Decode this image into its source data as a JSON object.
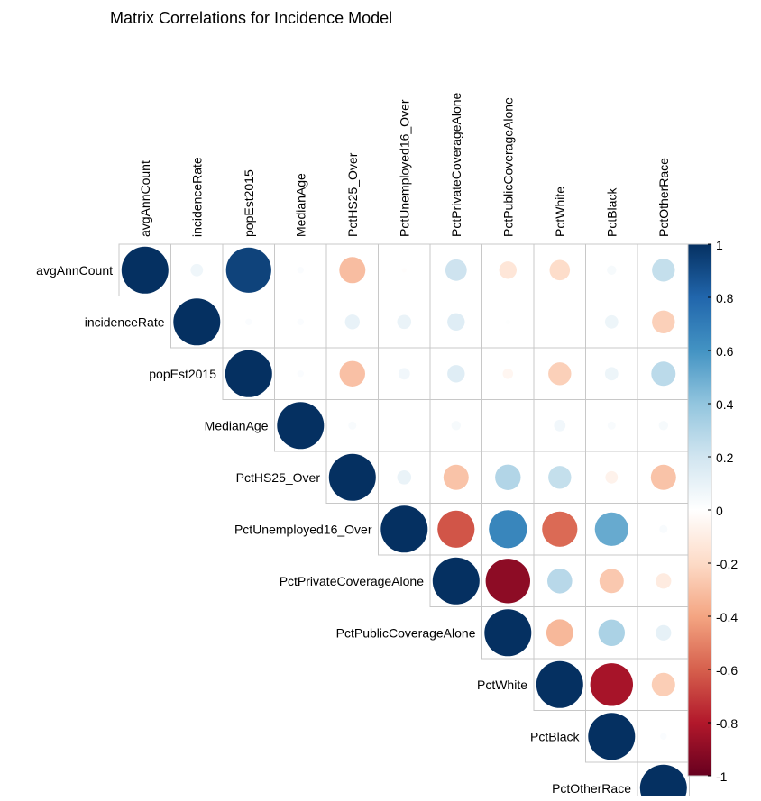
{
  "chart_data": {
    "type": "heatmap",
    "title": "Matrix Correlations for Incidence Model",
    "variables": [
      "avgAnnCount",
      "incidenceRate",
      "popEst2015",
      "MedianAge",
      "PctHS25_Over",
      "PctUnemployed16_Over",
      "PctPrivateCoverageAlone",
      "PctPublicCoverageAlone",
      "PctWhite",
      "PctBlack",
      "PctOtherRace"
    ],
    "matrix": [
      [
        1.0,
        0.07,
        0.93,
        0.02,
        -0.31,
        -0.01,
        0.21,
        -0.14,
        -0.19,
        0.04,
        0.24
      ],
      [
        null,
        1.0,
        0.02,
        0.02,
        0.1,
        0.09,
        0.14,
        0.01,
        0.0,
        0.08,
        -0.24
      ],
      [
        null,
        null,
        1.0,
        0.02,
        -0.3,
        0.06,
        0.14,
        -0.05,
        -0.24,
        0.08,
        0.27
      ],
      [
        null,
        null,
        null,
        1.0,
        0.03,
        0.0,
        0.04,
        0.0,
        0.06,
        0.03,
        0.04
      ],
      [
        null,
        null,
        null,
        null,
        1.0,
        0.09,
        -0.29,
        0.3,
        0.24,
        -0.07,
        -0.29
      ],
      [
        null,
        null,
        null,
        null,
        null,
        1.0,
        -0.63,
        0.66,
        -0.57,
        0.51,
        0.03
      ],
      [
        null,
        null,
        null,
        null,
        null,
        null,
        1.0,
        -0.9,
        0.28,
        -0.27,
        -0.11
      ],
      [
        null,
        null,
        null,
        null,
        null,
        null,
        null,
        1.0,
        -0.33,
        0.32,
        0.11
      ],
      [
        null,
        null,
        null,
        null,
        null,
        null,
        null,
        null,
        1.0,
        -0.83,
        -0.25
      ],
      [
        null,
        null,
        null,
        null,
        null,
        null,
        null,
        null,
        null,
        1.0,
        0.02
      ],
      [
        null,
        null,
        null,
        null,
        null,
        null,
        null,
        null,
        null,
        null,
        1.0
      ]
    ],
    "colorbar": {
      "ticks": [
        "1",
        "0.8",
        "0.6",
        "0.4",
        "0.2",
        "0",
        "-0.2",
        "-0.4",
        "-0.6",
        "-0.8",
        "-1"
      ],
      "range": [
        -1,
        1
      ]
    },
    "colors": {
      "negative_extreme": "#67001F",
      "negative_mid": "#D6604D",
      "negative_light": "#FDDBC7",
      "neutral": "#FFFFFF",
      "positive_light": "#D1E5F0",
      "positive_mid": "#4393C3",
      "positive_extreme": "#053061",
      "grid": "#C8C8C8"
    }
  }
}
